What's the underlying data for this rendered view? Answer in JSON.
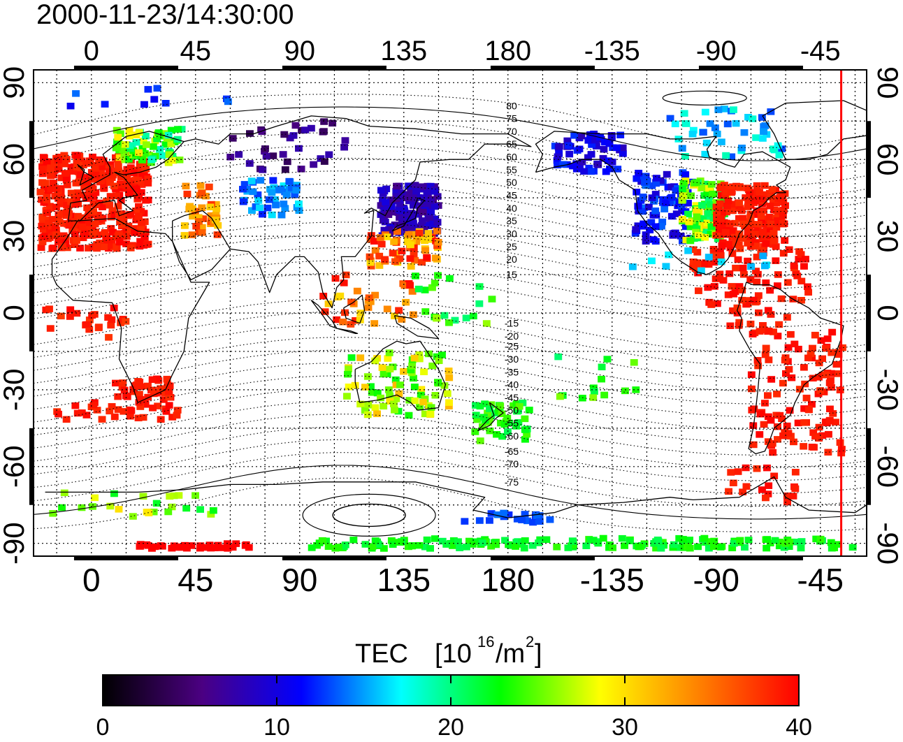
{
  "timestamp": "2000-11-23/14:30:00",
  "map": {
    "lon_labels": [
      "0",
      "45",
      "90",
      "135",
      "180",
      "-135",
      "-90",
      "-45"
    ],
    "lat_labels": [
      "90",
      "60",
      "30",
      "0",
      "-30",
      "-60",
      "-90"
    ],
    "lon_values": [
      0,
      45,
      90,
      135,
      180,
      225,
      270,
      315
    ],
    "lat_values": [
      90,
      60,
      30,
      0,
      -30,
      -60,
      -90
    ],
    "lon_range": [
      -25,
      335
    ],
    "lat_range": [
      -95,
      95
    ],
    "grid": true,
    "grid_step_deg": 15,
    "terminator_lon": 324,
    "terminator_color": "#ff0000",
    "magnetic_labels_north": [
      "80",
      "75",
      "70",
      "65",
      "60",
      "55",
      "50",
      "45",
      "40",
      "35",
      "30",
      "25",
      "20",
      "15"
    ],
    "magnetic_labels_south": [
      "-15",
      "-20",
      "-25",
      "-30",
      "-35",
      "-40",
      "-45",
      "-50",
      "-55",
      "-60",
      "-65",
      "-70",
      "-75"
    ],
    "magnetic_label_north_lat": [
      81,
      76,
      71,
      66,
      61,
      56,
      51,
      46,
      41,
      36,
      31,
      26,
      21,
      15
    ],
    "magnetic_label_south_lat": [
      -4,
      -9,
      -13,
      -18,
      -23,
      -28,
      -33,
      -38,
      -43,
      -48,
      -54,
      -59,
      -66
    ]
  },
  "colorbar": {
    "title": "TEC",
    "unit_base": "[10",
    "unit_exp": "16",
    "unit_mid": "/m",
    "unit_exp2": "2",
    "unit_end": "]",
    "ticks": [
      "0",
      "10",
      "20",
      "30",
      "40"
    ],
    "tick_values": [
      0,
      10,
      20,
      30,
      40
    ],
    "range": [
      0,
      40
    ],
    "stops": [
      "#000000",
      "#4b0082",
      "#0000ff",
      "#00ffff",
      "#00ff00",
      "#ffff00",
      "#ff8000",
      "#ff0000"
    ]
  },
  "tec_regions": [
    {
      "lon": [
        -22,
        25
      ],
      "lat": [
        25,
        62
      ],
      "tec": [
        38,
        40
      ],
      "n": 420
    },
    {
      "lon": [
        10,
        40
      ],
      "lat": [
        58,
        72
      ],
      "tec": [
        18,
        30
      ],
      "n": 70
    },
    {
      "lon": [
        40,
        55
      ],
      "lat": [
        30,
        50
      ],
      "tec": [
        30,
        38
      ],
      "n": 40
    },
    {
      "lon": [
        -15,
        40
      ],
      "lat": [
        -42,
        -35
      ],
      "tec": [
        38,
        40
      ],
      "n": 35
    },
    {
      "lon": [
        10,
        35
      ],
      "lat": [
        -35,
        -25
      ],
      "tec": [
        38,
        40
      ],
      "n": 40
    },
    {
      "lon": [
        -20,
        15
      ],
      "lat": [
        -10,
        2
      ],
      "tec": [
        37,
        40
      ],
      "n": 25
    },
    {
      "lon": [
        65,
        90
      ],
      "lat": [
        38,
        52
      ],
      "tec": [
        12,
        17
      ],
      "n": 45
    },
    {
      "lon": [
        60,
        110
      ],
      "lat": [
        55,
        75
      ],
      "tec": [
        3,
        8
      ],
      "n": 35
    },
    {
      "lon": [
        125,
        150
      ],
      "lat": [
        30,
        50
      ],
      "tec": [
        6,
        10
      ],
      "n": 140
    },
    {
      "lon": [
        120,
        150
      ],
      "lat": [
        18,
        32
      ],
      "tec": [
        30,
        40
      ],
      "n": 60
    },
    {
      "lon": [
        100,
        140
      ],
      "lat": [
        -5,
        15
      ],
      "tec": [
        30,
        40
      ],
      "n": 35
    },
    {
      "lon": [
        140,
        175
      ],
      "lat": [
        -5,
        15
      ],
      "tec": [
        20,
        27
      ],
      "n": 20
    },
    {
      "lon": [
        110,
        155
      ],
      "lat": [
        -40,
        -15
      ],
      "tec": [
        22,
        32
      ],
      "n": 80
    },
    {
      "lon": [
        165,
        190
      ],
      "lat": [
        -50,
        -35
      ],
      "tec": [
        21,
        25
      ],
      "n": 45
    },
    {
      "lon": [
        200,
        230
      ],
      "lat": [
        55,
        70
      ],
      "tec": [
        8,
        13
      ],
      "n": 60
    },
    {
      "lon": [
        235,
        260
      ],
      "lat": [
        28,
        55
      ],
      "tec": [
        9,
        14
      ],
      "n": 90
    },
    {
      "lon": [
        255,
        275
      ],
      "lat": [
        28,
        52
      ],
      "tec": [
        20,
        30
      ],
      "n": 110
    },
    {
      "lon": [
        270,
        300
      ],
      "lat": [
        25,
        50
      ],
      "tec": [
        38,
        40
      ],
      "n": 190
    },
    {
      "lon": [
        260,
        310
      ],
      "lat": [
        -5,
        25
      ],
      "tec": [
        38,
        40
      ],
      "n": 90
    },
    {
      "lon": [
        285,
        325
      ],
      "lat": [
        -55,
        -5
      ],
      "tec": [
        38,
        40
      ],
      "n": 120
    },
    {
      "lon": [
        275,
        305
      ],
      "lat": [
        -75,
        -60
      ],
      "tec": [
        38,
        40
      ],
      "n": 20
    },
    {
      "lon": [
        250,
        300
      ],
      "lat": [
        60,
        80
      ],
      "tec": [
        13,
        19
      ],
      "n": 45
    },
    {
      "lon": [
        -20,
        60
      ],
      "lat": [
        -80,
        -70
      ],
      "tec": [
        21,
        30
      ],
      "n": 25
    },
    {
      "lon": [
        20,
        70
      ],
      "lat": [
        -92,
        -90
      ],
      "tec": [
        40,
        40
      ],
      "n": 40
    },
    {
      "lon": [
        95,
        330
      ],
      "lat": [
        -92,
        -88
      ],
      "tec": [
        21,
        24
      ],
      "n": 160
    },
    {
      "lon": [
        160,
        200
      ],
      "lat": [
        -82,
        -78
      ],
      "tec": [
        12,
        14
      ],
      "n": 20
    },
    {
      "lon": [
        -10,
        60
      ],
      "lat": [
        80,
        88
      ],
      "tec": [
        10,
        14
      ],
      "n": 10
    },
    {
      "lon": [
        200,
        300
      ],
      "lat": [
        15,
        25
      ],
      "tec": [
        15,
        17
      ],
      "n": 12
    },
    {
      "lon": [
        200,
        240
      ],
      "lat": [
        -35,
        -15
      ],
      "tec": [
        20,
        26
      ],
      "n": 14
    }
  ]
}
